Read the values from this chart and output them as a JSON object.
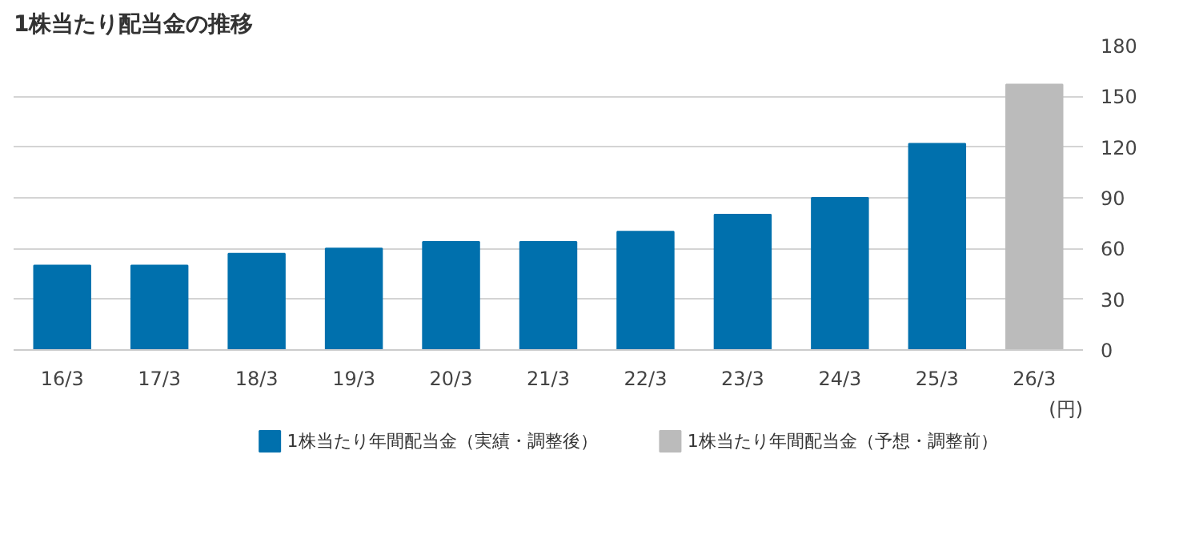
{
  "chart_data": {
    "type": "bar",
    "title": "1株当たり配当金の推移",
    "annotations": [
      "(円)"
    ],
    "categories": [
      "16/3",
      "17/3",
      "18/3",
      "19/3",
      "20/3",
      "21/3",
      "22/3",
      "23/3",
      "24/3",
      "25/3",
      "26/3"
    ],
    "series": [
      {
        "name": "1株当たり年間配当金（実績・調整後）",
        "color": "#0070ad",
        "values": [
          50,
          50,
          57,
          60,
          64,
          64,
          70,
          80,
          90,
          122,
          null
        ]
      },
      {
        "name": "1株当たり年間配当金（予想・調整前）",
        "color": "#bbbbbb",
        "values": [
          null,
          null,
          null,
          null,
          null,
          null,
          null,
          null,
          null,
          null,
          157
        ]
      }
    ],
    "ylim": [
      0,
      180
    ],
    "yticks": [
      0,
      30,
      60,
      90,
      120,
      150,
      180
    ],
    "grid": "y",
    "legend": "bottom right"
  }
}
